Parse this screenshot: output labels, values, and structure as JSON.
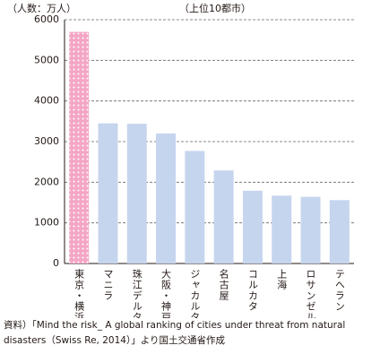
{
  "chart_data": {
    "type": "bar",
    "unit_label": "（人数：万人）",
    "subtitle": "（上位10都市）",
    "categories": [
      "東京・横浜",
      "マニラ",
      "珠江デルタ",
      "大阪・神戸",
      "ジャカルタ",
      "名古屋",
      "コルカタ",
      "上海",
      "ロサンゼルス",
      "テヘラン"
    ],
    "values": [
      5700,
      3450,
      3440,
      3200,
      2770,
      2290,
      1790,
      1670,
      1640,
      1560
    ],
    "colors": [
      "#f4a6c5",
      "#c6d5ee",
      "#c6d5ee",
      "#c6d5ee",
      "#c6d5ee",
      "#c6d5ee",
      "#c6d5ee",
      "#c6d5ee",
      "#c6d5ee",
      "#c6d5ee"
    ],
    "ylim": [
      0,
      6000
    ],
    "yticks": [
      0,
      1000,
      2000,
      3000,
      4000,
      5000,
      6000
    ],
    "grid": true,
    "note": "資料）「Mind the risk_ A global ranking of cities under threat from natural disasters（Swiss Re, 2014）」より国土交通省作成"
  }
}
